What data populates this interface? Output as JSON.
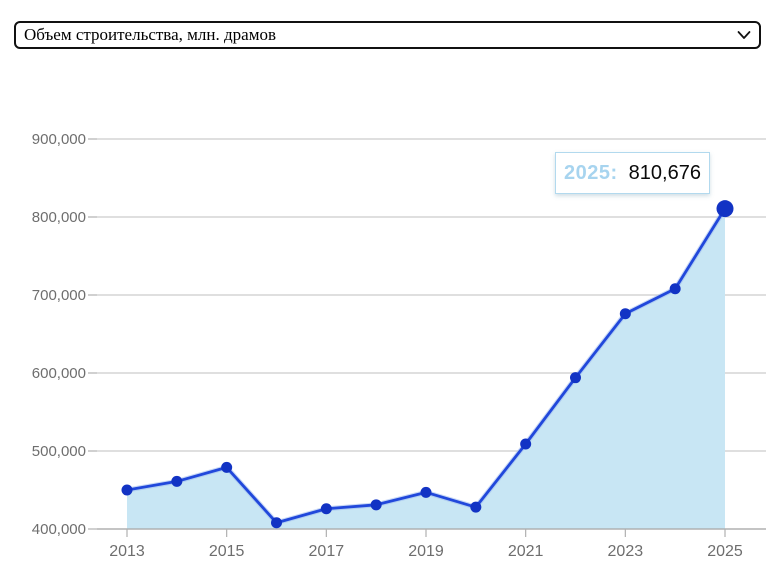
{
  "dropdown": {
    "selected": "Объем строительства, млн. драмов",
    "options": [
      "Объем строительства, млн. драмов"
    ]
  },
  "tooltip": {
    "year_label": "2025:",
    "value": "810,676"
  },
  "chart_data": {
    "type": "area",
    "title": "Объем строительства, млн. драмов",
    "x": [
      2013,
      2014,
      2015,
      2016,
      2017,
      2018,
      2019,
      2020,
      2021,
      2022,
      2023,
      2024,
      2025
    ],
    "values": [
      450000,
      461000,
      479000,
      408000,
      426000,
      431000,
      447000,
      428000,
      509000,
      594000,
      676000,
      708000,
      810676
    ],
    "series_name": "Объем строительства, млн. драмов",
    "ylim": [
      400000,
      900000
    ],
    "ytick_step": 100000,
    "ytick_labels": [
      "400,000",
      "500,000",
      "600,000",
      "700,000",
      "800,000",
      "900,000"
    ],
    "xtick_labels": [
      "2013",
      "2015",
      "2017",
      "2019",
      "2021",
      "2023",
      "2025"
    ],
    "grid": "horizontal-only",
    "legend": "none",
    "highlight_point": {
      "year": 2025,
      "value": 810676,
      "label": "810,676"
    }
  },
  "colors": {
    "line": "#2148db",
    "line_halo": "#9db9ee",
    "point": "#1233c4",
    "area_fill": "#c8e6f4",
    "gridline": "#cccccc",
    "axis_line": "#a8a8a8",
    "tick": "#b0b0b0",
    "tick_text": "#6e6e6e",
    "tooltip_border": "#b2d9ee",
    "tooltip_year_text": "#a7d4ef",
    "select_border": "#111111"
  }
}
